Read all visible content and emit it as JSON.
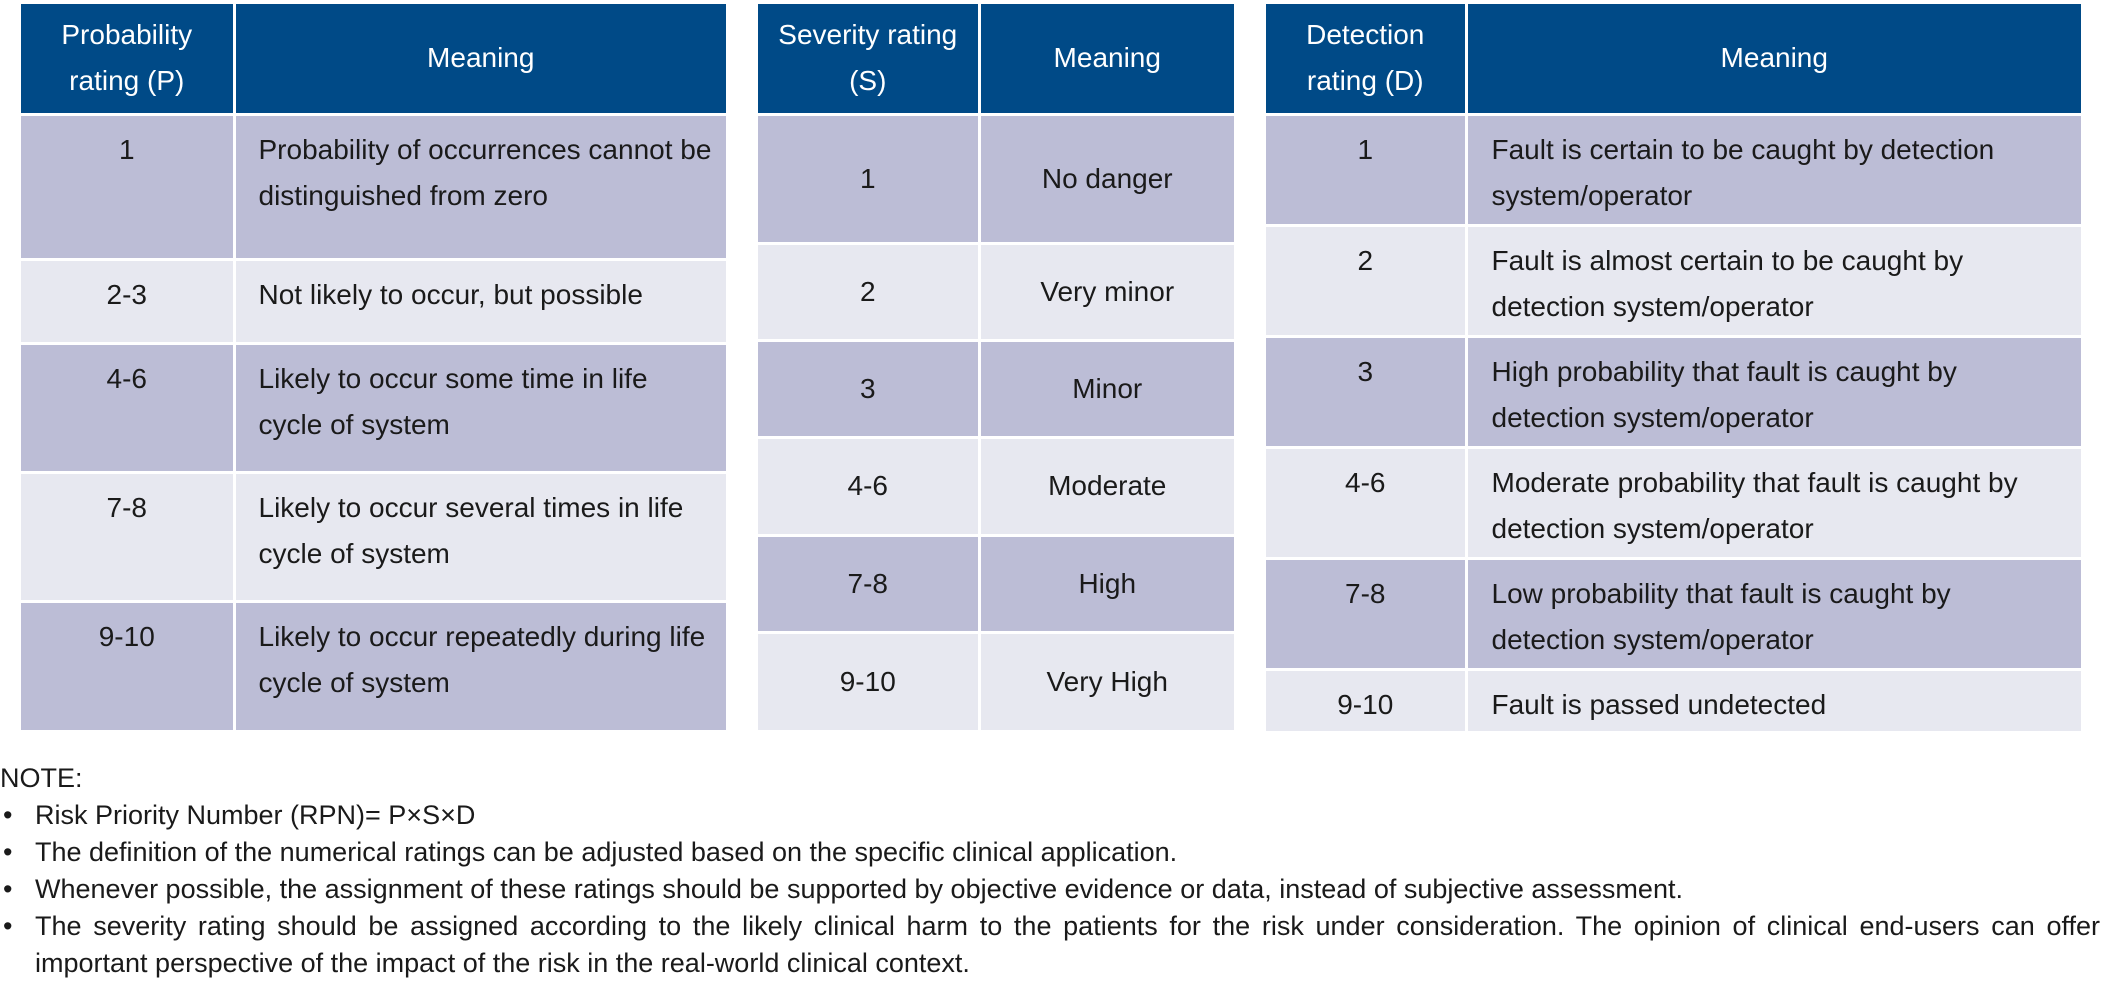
{
  "probability": {
    "header": {
      "rating": "Probability rating (P)",
      "meaning": "Meaning"
    },
    "rows": [
      {
        "rating": "1",
        "meaning": "Probability of occurrences cannot be distinguished from zero"
      },
      {
        "rating": "2-3",
        "meaning": "Not likely to occur, but possible"
      },
      {
        "rating": "4-6",
        "meaning": "Likely to occur some time in life cycle of system"
      },
      {
        "rating": "7-8",
        "meaning": "Likely to occur several times in life cycle of system"
      },
      {
        "rating": "9-10",
        "meaning": "Likely to occur repeatedly during life cycle of system"
      }
    ]
  },
  "severity": {
    "header": {
      "rating": "Severity rating (S)",
      "meaning": "Meaning"
    },
    "rows": [
      {
        "rating": "1",
        "meaning": "No danger"
      },
      {
        "rating": "2",
        "meaning": "Very minor"
      },
      {
        "rating": "3",
        "meaning": "Minor"
      },
      {
        "rating": "4-6",
        "meaning": "Moderate"
      },
      {
        "rating": "7-8",
        "meaning": "High"
      },
      {
        "rating": "9-10",
        "meaning": "Very High"
      }
    ]
  },
  "detection": {
    "header": {
      "rating": "Detection rating (D)",
      "meaning": "Meaning"
    },
    "rows": [
      {
        "rating": "1",
        "meaning": "Fault is certain to be caught by detection system/operator"
      },
      {
        "rating": "2",
        "meaning": "Fault is almost certain to be caught by detection system/operator"
      },
      {
        "rating": "3",
        "meaning": "High probability that fault is caught by detection system/operator"
      },
      {
        "rating": "4-6",
        "meaning": "Moderate probability that fault is caught by detection system/operator"
      },
      {
        "rating": "7-8",
        "meaning": "Low probability that fault is caught by detection system/operator"
      },
      {
        "rating": "9-10",
        "meaning": "Fault is passed undetected"
      }
    ]
  },
  "note": {
    "title": "NOTE:",
    "bullet": "•",
    "items": [
      "Risk Priority Number (RPN)= P×S×D",
      "The definition of the numerical ratings can be adjusted based on the specific clinical application.",
      "Whenever possible, the assignment of these ratings should be supported by objective evidence or data, instead of subjective assessment.",
      "The severity rating should be assigned according to the likely clinical harm to the patients for the risk under consideration. The opinion of clinical end-users can offer important perspective of the impact of the risk in the real-world clinical context."
    ]
  },
  "colors": {
    "header_bg": "#004a87",
    "row_dark": "#bcbdd6",
    "row_light": "#e7e8f0",
    "header_text": "#ffffff"
  }
}
